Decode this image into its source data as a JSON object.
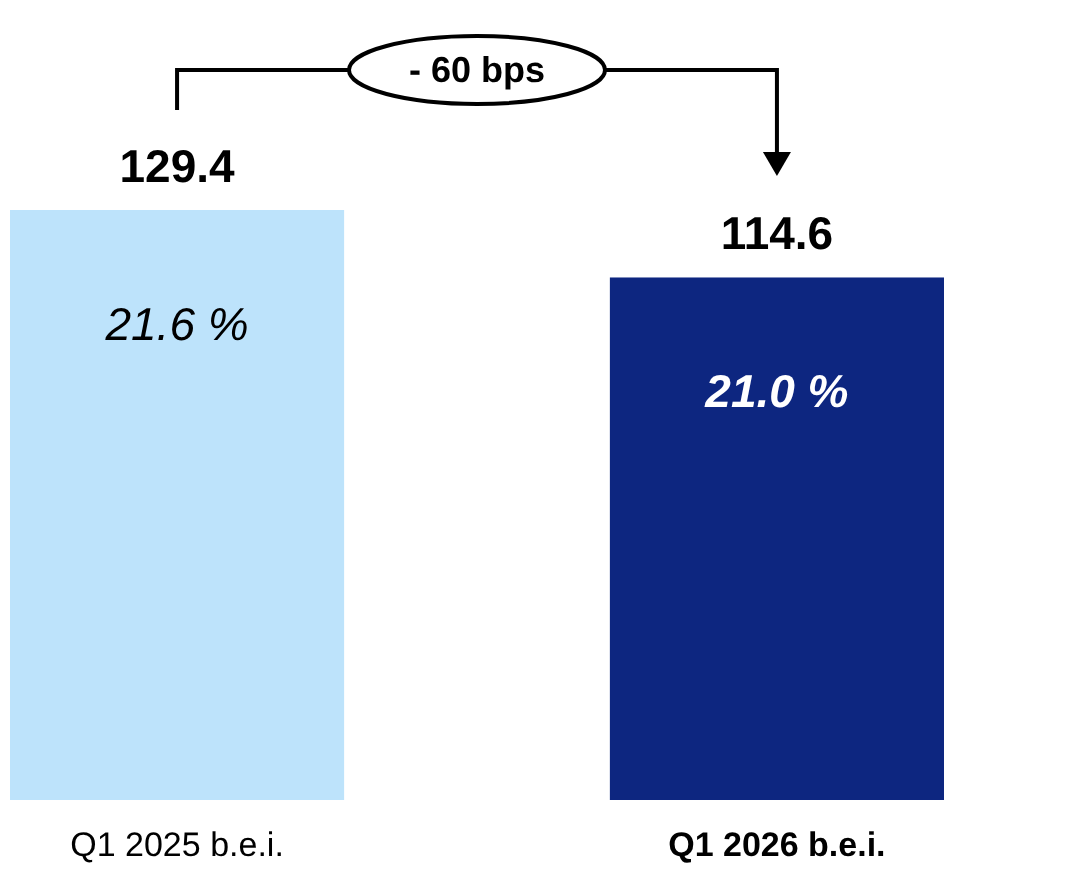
{
  "chart_data": {
    "type": "bar",
    "categories": [
      "Q1 2025 b.e.i.",
      "Q1 2026 b.e.i."
    ],
    "values": [
      129.4,
      114.6
    ],
    "colors": [
      "#bde3fb",
      "#0d2680"
    ],
    "data_labels": true,
    "annotations": [
      "21.6 %",
      "21.0 %",
      "- 60 bps"
    ]
  }
}
